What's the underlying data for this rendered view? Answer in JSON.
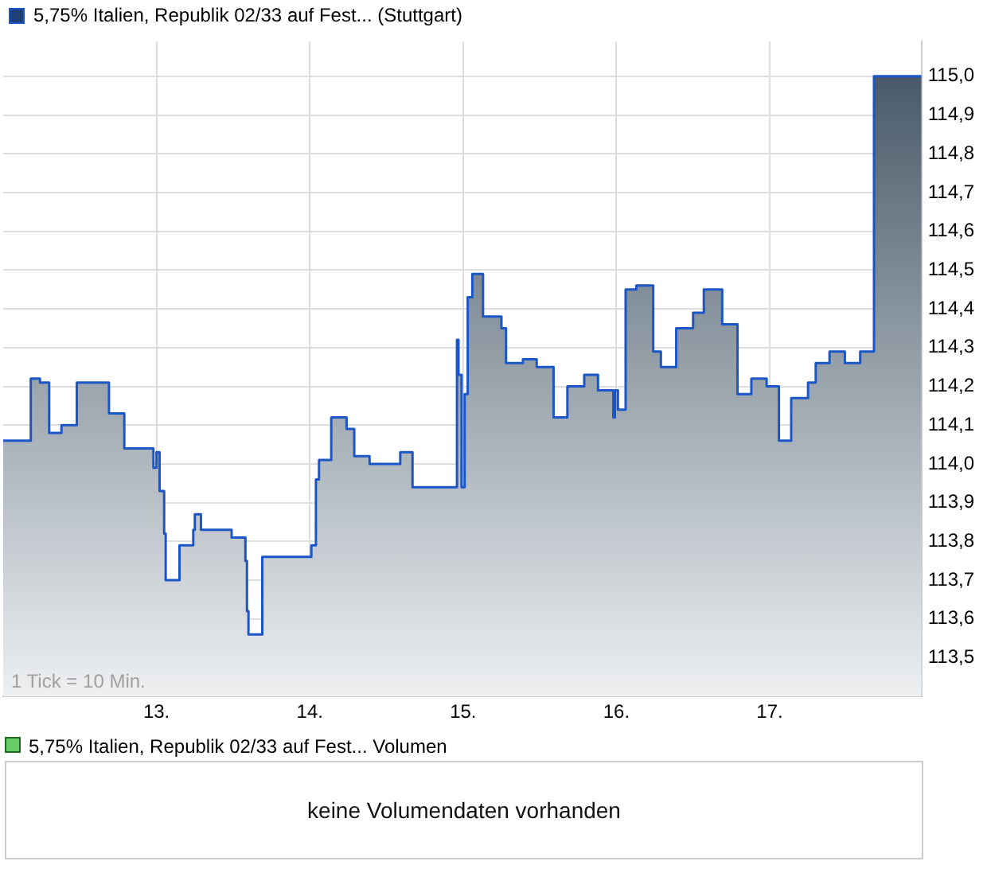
{
  "chart_data": [
    {
      "type": "area",
      "series": [
        {
          "name": "5,75% Italien, Republik 02/33 auf Fest... (Stuttgart)",
          "color": "#1a56c8",
          "x": [
            12.0,
            12.18,
            12.18,
            12.24,
            12.24,
            12.3,
            12.3,
            12.38,
            12.38,
            12.48,
            12.48,
            12.69,
            12.69,
            12.79,
            12.79,
            12.98,
            12.98,
            13.0,
            13.0,
            13.02,
            13.02,
            13.05,
            13.05,
            13.06,
            13.06,
            13.15,
            13.15,
            13.24,
            13.24,
            13.25,
            13.25,
            13.29,
            13.29,
            13.49,
            13.49,
            13.58,
            13.58,
            13.59,
            13.59,
            13.6,
            13.6,
            13.69,
            13.69,
            14.01,
            14.01,
            14.04,
            14.04,
            14.06,
            14.06,
            14.14,
            14.14,
            14.24,
            14.24,
            14.29,
            14.29,
            14.39,
            14.39,
            14.59,
            14.59,
            14.67,
            14.67,
            14.96,
            14.96,
            14.97,
            14.97,
            14.99,
            14.99,
            15.01,
            15.01,
            15.03,
            15.03,
            15.06,
            15.06,
            15.13,
            15.13,
            15.25,
            15.25,
            15.28,
            15.28,
            15.39,
            15.39,
            15.48,
            15.48,
            15.59,
            15.59,
            15.68,
            15.68,
            15.79,
            15.79,
            15.88,
            15.88,
            15.98,
            15.98,
            15.99,
            15.99,
            16.01,
            16.01,
            16.06,
            16.06,
            16.13,
            16.13,
            16.24,
            16.24,
            16.29,
            16.29,
            16.39,
            16.39,
            16.5,
            16.5,
            16.57,
            16.57,
            16.69,
            16.69,
            16.79,
            16.79,
            16.88,
            16.88,
            16.98,
            16.98,
            17.06,
            17.06,
            17.14,
            17.14,
            17.25,
            17.25,
            17.3,
            17.3,
            17.39,
            17.39,
            17.49,
            17.49,
            17.59,
            17.59,
            17.68,
            17.68,
            17.99
          ],
          "values": [
            114.06,
            114.06,
            114.22,
            114.22,
            114.21,
            114.21,
            114.08,
            114.08,
            114.1,
            114.1,
            114.21,
            114.21,
            114.13,
            114.13,
            114.04,
            114.04,
            113.99,
            113.99,
            114.03,
            114.03,
            113.93,
            113.93,
            113.82,
            113.82,
            113.7,
            113.7,
            113.79,
            113.79,
            113.83,
            113.83,
            113.87,
            113.87,
            113.83,
            113.83,
            113.81,
            113.81,
            113.75,
            113.75,
            113.62,
            113.62,
            113.56,
            113.56,
            113.76,
            113.76,
            113.79,
            113.79,
            113.96,
            113.96,
            114.01,
            114.01,
            114.12,
            114.12,
            114.09,
            114.09,
            114.02,
            114.02,
            114.0,
            114.0,
            114.03,
            114.03,
            113.94,
            113.94,
            114.32,
            114.32,
            114.23,
            114.23,
            113.94,
            113.94,
            114.18,
            114.18,
            114.43,
            114.43,
            114.49,
            114.49,
            114.38,
            114.38,
            114.35,
            114.35,
            114.26,
            114.26,
            114.27,
            114.27,
            114.25,
            114.25,
            114.12,
            114.12,
            114.2,
            114.2,
            114.23,
            114.23,
            114.19,
            114.19,
            114.12,
            114.12,
            114.19,
            114.19,
            114.14,
            114.14,
            114.45,
            114.45,
            114.46,
            114.46,
            114.29,
            114.29,
            114.25,
            114.25,
            114.35,
            114.35,
            114.39,
            114.39,
            114.45,
            114.45,
            114.36,
            114.36,
            114.18,
            114.18,
            114.22,
            114.22,
            114.2,
            114.2,
            114.06,
            114.06,
            114.17,
            114.17,
            114.21,
            114.21,
            114.26,
            114.26,
            114.29,
            114.29,
            114.26,
            114.26,
            114.29,
            114.29,
            115.0,
            115.0
          ]
        }
      ],
      "xlim": [
        12.0,
        17.99
      ],
      "xticks": [
        {
          "value": 13,
          "label": "13."
        },
        {
          "value": 14,
          "label": "14."
        },
        {
          "value": 15,
          "label": "15."
        },
        {
          "value": 16,
          "label": "16."
        },
        {
          "value": 17,
          "label": "17."
        }
      ],
      "ylim": [
        113.4,
        115.09
      ],
      "yticks": [
        {
          "value": 113.5,
          "label": "113,5"
        },
        {
          "value": 113.6,
          "label": "113,6"
        },
        {
          "value": 113.7,
          "label": "113,7"
        },
        {
          "value": 113.8,
          "label": "113,8"
        },
        {
          "value": 113.9,
          "label": "113,9"
        },
        {
          "value": 114.0,
          "label": "114,0"
        },
        {
          "value": 114.1,
          "label": "114,1"
        },
        {
          "value": 114.2,
          "label": "114,2"
        },
        {
          "value": 114.3,
          "label": "114,3"
        },
        {
          "value": 114.4,
          "label": "114,4"
        },
        {
          "value": 114.5,
          "label": "114,5"
        },
        {
          "value": 114.6,
          "label": "114,6"
        },
        {
          "value": 114.7,
          "label": "114,7"
        },
        {
          "value": 114.8,
          "label": "114,8"
        },
        {
          "value": 114.9,
          "label": "114,9"
        },
        {
          "value": 115.0,
          "label": "115,0"
        }
      ],
      "grid": true,
      "legend": "top left",
      "marker": "none",
      "annotations": [
        "1 Tick = 10 Min."
      ]
    },
    {
      "type": "other",
      "title": "5,75% Italien, Republik 02/33 auf Fest... Volumen",
      "annotations": [
        "keine Volumendaten vorhanden"
      ]
    }
  ]
}
